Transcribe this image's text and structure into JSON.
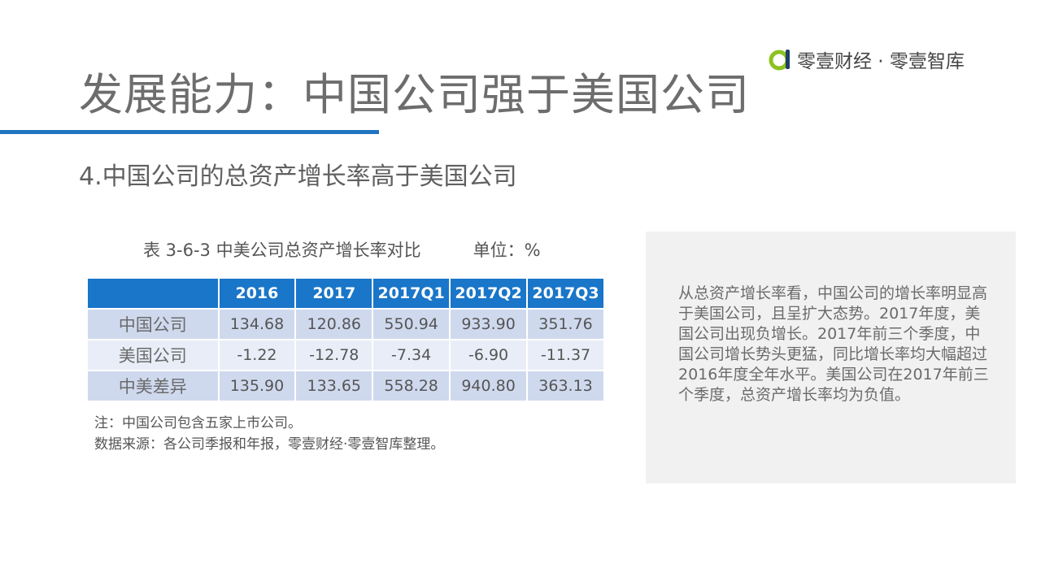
{
  "header": {
    "title": "发展能力：中国公司强于美国公司",
    "logo_text": "零壹财经 · 零壹智库",
    "logo_icon": "zero-one-logo-icon",
    "accent_color": "#1f74c0",
    "logo_color": "#8dc21f"
  },
  "subtitle": "4.中国公司的总资产增长率高于美国公司",
  "table": {
    "caption": "表 3-6-3 中美公司总资产增长率对比",
    "unit": "单位：%",
    "header_color": "#1976c9",
    "columns": [
      "",
      "2016",
      "2017",
      "2017Q1",
      "2017Q2",
      "2017Q3"
    ],
    "rows": [
      {
        "label": "中国公司",
        "values": [
          "134.68",
          "120.86",
          "550.94",
          "933.90",
          "351.76"
        ]
      },
      {
        "label": "美国公司",
        "values": [
          "-1.22",
          "-12.78",
          "-7.34",
          "-6.90",
          "-11.37"
        ]
      },
      {
        "label": "中美差异",
        "values": [
          "135.90",
          "133.65",
          "558.28",
          "940.80",
          "363.13"
        ]
      }
    ]
  },
  "notes": {
    "line1": "注：中国公司包含五家上市公司。",
    "line2": "数据来源：各公司季报和年报，零壹财经·零壹智库整理。"
  },
  "side_box": {
    "text": "从总资产增长率看，中国公司的增长率明显高于美国公司，且呈扩大态势。2017年度，美国公司出现负增长。2017年前三个季度，中国公司增长势头更猛，同比增长率均大幅超过2016年度全年水平。美国公司在2017年前三个季度，总资产增长率均为负值。"
  }
}
